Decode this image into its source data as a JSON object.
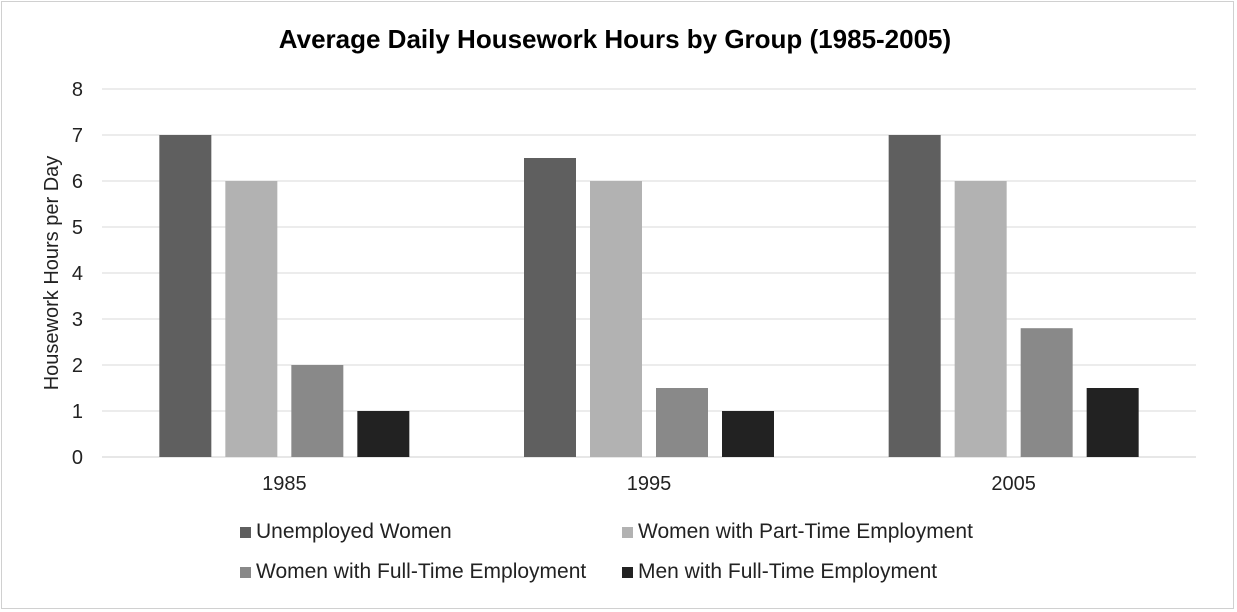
{
  "chart_data": {
    "type": "bar",
    "title": "Average Daily Housework Hours by Group (1985-2005)",
    "xlabel": "",
    "ylabel": "Housework Hours per Day",
    "ylim": [
      0,
      8
    ],
    "yticks": [
      0,
      1,
      2,
      3,
      4,
      5,
      6,
      7,
      8
    ],
    "categories": [
      "1985",
      "1995",
      "2005"
    ],
    "grid": true,
    "legend_position": "bottom",
    "series": [
      {
        "name": "Unemployed Women",
        "color": "#5f5f5f",
        "values": [
          7,
          6.5,
          7
        ]
      },
      {
        "name": "Women with Part-Time Employment",
        "color": "#b2b2b2",
        "values": [
          6,
          6,
          6
        ]
      },
      {
        "name": "Women with Full-Time Employment",
        "color": "#898989",
        "values": [
          2,
          1.5,
          2.8
        ]
      },
      {
        "name": "Men with Full-Time Employment",
        "color": "#222222",
        "values": [
          1,
          1,
          1.5
        ]
      }
    ]
  }
}
